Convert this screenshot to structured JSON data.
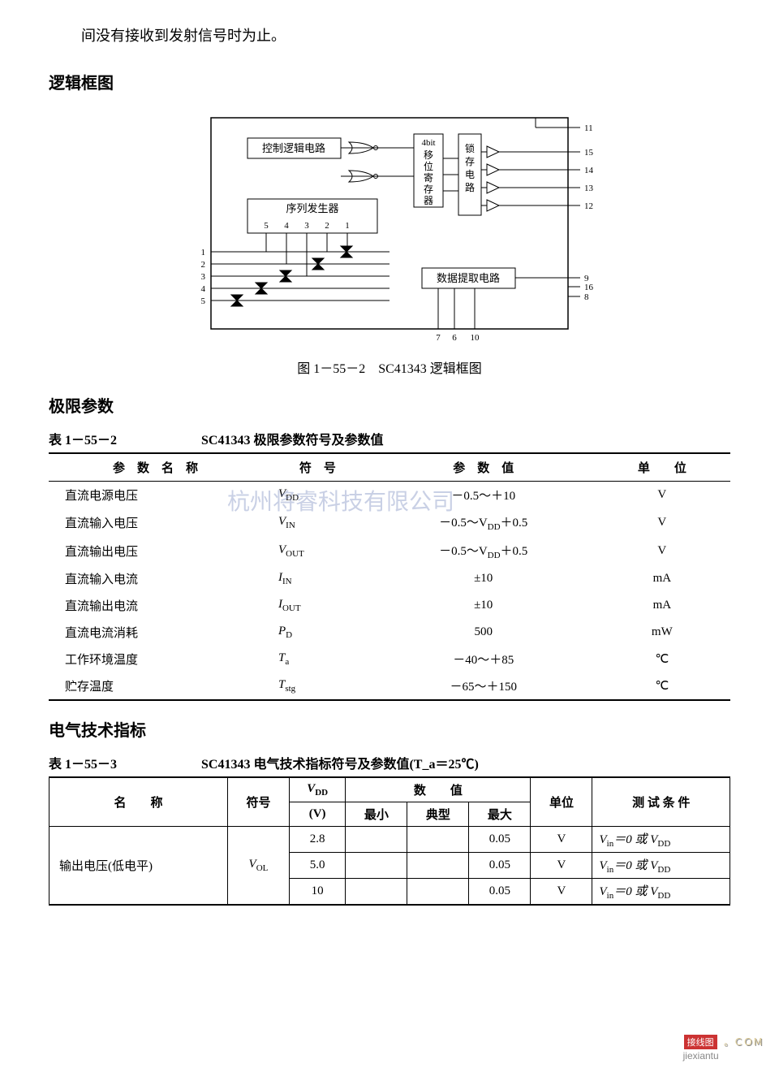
{
  "intro_text": "间没有接收到发射信号时为止。",
  "heading_logic": "逻辑框图",
  "heading_limits": "极限参数",
  "heading_elec": "电气技术指标",
  "watermark": "杭州将睿科技有限公司",
  "diagram": {
    "type": "block-diagram",
    "caption": "图 1－55－2　SC41343 逻辑框图",
    "background_color": "#ffffff",
    "stroke_color": "#000000",
    "blocks": {
      "control_logic": "控制逻辑电路",
      "seq_gen": "序列发生器",
      "seq_nums": [
        "5",
        "4",
        "3",
        "2",
        "1"
      ],
      "shift_reg": "4bit\n移位寄存器",
      "latch": "锁存电路",
      "data_extract": "数据提取电路"
    },
    "left_pins": [
      "1",
      "2",
      "3",
      "4",
      "5"
    ],
    "bottom_pins": [
      "7",
      "6",
      "10"
    ],
    "right_pins_top": [
      "11",
      "15",
      "14",
      "13",
      "12"
    ],
    "right_pins_bot": [
      "9",
      "16",
      "8"
    ]
  },
  "table_limits": {
    "number": "表 1－55－2",
    "title": "SC41343 极限参数符号及参数值",
    "columns": [
      "参　数　名　称",
      "符　号",
      "参　数　值",
      "单　　位"
    ],
    "rows": [
      {
        "name": "直流电源电压",
        "sym": "V",
        "sub": "DD",
        "val": "－0.5～＋10",
        "unit": "V"
      },
      {
        "name": "直流输入电压",
        "sym": "V",
        "sub": "IN",
        "val": "－0.5～V_DD＋0.5",
        "unit": "V"
      },
      {
        "name": "直流输出电压",
        "sym": "V",
        "sub": "OUT",
        "val": "－0.5～V_DD＋0.5",
        "unit": "V"
      },
      {
        "name": "直流输入电流",
        "sym": "I",
        "sub": "IN",
        "val": "±10",
        "unit": "mA"
      },
      {
        "name": "直流输出电流",
        "sym": "I",
        "sub": "OUT",
        "val": "±10",
        "unit": "mA"
      },
      {
        "name": "直流电流消耗",
        "sym": "P",
        "sub": "D",
        "val": "500",
        "unit": "mW"
      },
      {
        "name": "工作环境温度",
        "sym": "T",
        "sub": "a",
        "val": "－40～＋85",
        "unit": "℃"
      },
      {
        "name": "贮存温度",
        "sym": "T",
        "sub": "stg",
        "val": "－65～＋150",
        "unit": "℃"
      }
    ]
  },
  "table_elec": {
    "number": "表 1－55－3",
    "title": "SC41343 电气技术指标符号及参数值(T_a＝25℃)",
    "columns": {
      "name": "名　　称",
      "sym": "符号",
      "vdd": "V_DD",
      "vdd_unit": "(V)",
      "val_header": "数　　值",
      "min": "最小",
      "typ": "典型",
      "max": "最大",
      "unit": "单位",
      "cond": "测 试 条 件"
    },
    "rows": [
      {
        "name": "输出电压(低电平)",
        "sym": "V",
        "sub": "OL",
        "vdd": "2.8",
        "min": "",
        "typ": "",
        "max": "0.05",
        "unit": "V",
        "cond": "V_in＝0 或 V_DD"
      },
      {
        "name": "",
        "sym": "",
        "sub": "",
        "vdd": "5.0",
        "min": "",
        "typ": "",
        "max": "0.05",
        "unit": "V",
        "cond": "V_in＝0 或 V_DD"
      },
      {
        "name": "",
        "sym": "",
        "sub": "",
        "vdd": "10",
        "min": "",
        "typ": "",
        "max": "0.05",
        "unit": "V",
        "cond": "V_in＝0 或 V_DD"
      }
    ]
  },
  "footer": {
    "tag": "接线图",
    "url_outline": "。ＣＯＭ",
    "url2": "jiexiantu"
  }
}
